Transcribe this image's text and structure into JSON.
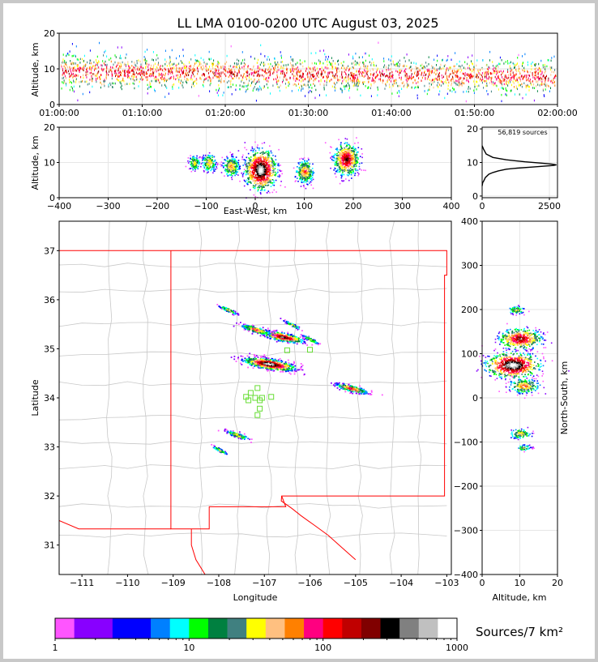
{
  "title": "LL LMA 0100-0200 UTC August 03, 2025",
  "colorbar_label": "Sources/7 km²",
  "chart_data": [
    {
      "id": "time_height",
      "type": "scatter",
      "ylabel": "Altitude, km",
      "ylim": [
        0,
        20
      ],
      "yticks": [
        "0",
        "10",
        "20"
      ],
      "xticks": [
        "01:00:00",
        "01:10:00",
        "01:20:00",
        "01:30:00",
        "01:40:00",
        "01:50:00",
        "02:00:00"
      ],
      "grid": true
    },
    {
      "id": "ew_height",
      "type": "heatmap",
      "xlabel": "East-West, km",
      "ylabel": "Altitude, km",
      "xlim": [
        -400,
        400
      ],
      "ylim": [
        0,
        20
      ],
      "xticks": [
        "−400",
        "−300",
        "−200",
        "−100",
        "0",
        "100",
        "200",
        "300",
        "400"
      ],
      "yticks": [
        "0",
        "10",
        "20"
      ],
      "clusters": [
        {
          "x": 10,
          "z": 8,
          "weight": 3
        },
        {
          "x": 100,
          "z": 7.5,
          "weight": 1
        },
        {
          "x": 185,
          "z": 11,
          "weight": 2
        },
        {
          "x": -50,
          "z": 9,
          "weight": 0.8
        },
        {
          "x": -95,
          "z": 10,
          "weight": 0.6
        },
        {
          "x": -125,
          "z": 10,
          "weight": 0.4
        }
      ]
    },
    {
      "id": "height_histogram",
      "type": "line",
      "annotation": "56,819 sources",
      "xlim": [
        0,
        2800
      ],
      "ylim": [
        -0.5,
        20.5
      ],
      "xticks": [
        "0",
        "2500"
      ],
      "yticks": [
        "0",
        "10",
        "20"
      ],
      "x": [
        0,
        20,
        60,
        120,
        250,
        400,
        600,
        900,
        1300,
        1800,
        2300,
        2650,
        2760,
        2600,
        2200,
        1600,
        900,
        400,
        150,
        50,
        0
      ],
      "y": [
        3,
        4,
        4.5,
        5.5,
        6.5,
        7,
        7.5,
        8,
        8.3,
        8.6,
        8.9,
        9.1,
        9.3,
        9.5,
        9.8,
        10.2,
        10.8,
        11.5,
        12.5,
        14,
        15
      ]
    },
    {
      "id": "plan_view",
      "type": "heatmap",
      "xlabel": "Longitude",
      "ylabel": "Latitude",
      "xlim": [
        -111.5,
        -102.9
      ],
      "ylim": [
        30.4,
        37.6
      ],
      "xticks": [
        "−111",
        "−110",
        "−109",
        "−108",
        "−107",
        "−106",
        "−105",
        "−104",
        "−103"
      ],
      "yticks": [
        "31",
        "32",
        "33",
        "34",
        "35",
        "36",
        "37"
      ],
      "clusters": [
        {
          "lon": -106.9,
          "lat": 34.7,
          "weight": 3
        },
        {
          "lon": -106.6,
          "lat": 35.25,
          "weight": 2
        },
        {
          "lon": -107.2,
          "lat": 35.4,
          "weight": 1
        },
        {
          "lon": -105.1,
          "lat": 34.2,
          "weight": 1.2
        },
        {
          "lon": -107.6,
          "lat": 33.25,
          "weight": 0.6
        },
        {
          "lon": -108.0,
          "lat": 32.95,
          "weight": 0.3
        },
        {
          "lon": -107.8,
          "lat": 35.8,
          "weight": 0.4
        },
        {
          "lon": -106.4,
          "lat": 35.5,
          "weight": 0.3
        },
        {
          "lon": -106.0,
          "lat": 35.2,
          "weight": 0.3
        }
      ],
      "stations": [
        {
          "lon": -107.15,
          "lat": 34.2
        },
        {
          "lon": -107.3,
          "lat": 34.1
        },
        {
          "lon": -107.4,
          "lat": 34.02
        },
        {
          "lon": -107.2,
          "lat": 34.0
        },
        {
          "lon": -107.05,
          "lat": 34.0
        },
        {
          "lon": -106.85,
          "lat": 34.02
        },
        {
          "lon": -107.1,
          "lat": 33.95
        },
        {
          "lon": -107.1,
          "lat": 33.78
        },
        {
          "lon": -107.15,
          "lat": 33.65
        },
        {
          "lon": -107.35,
          "lat": 33.95
        },
        {
          "lon": -106.5,
          "lat": 34.97
        },
        {
          "lon": -106.0,
          "lat": 34.98
        }
      ]
    },
    {
      "id": "ns_height",
      "type": "heatmap",
      "xlabel": "Altitude, km",
      "ylabel": "North-South, km",
      "xlim": [
        0,
        20
      ],
      "ylim": [
        -400,
        400
      ],
      "xticks": [
        "0",
        "10",
        "20"
      ],
      "yticks": [
        "400",
        "300",
        "200",
        "100",
        "0",
        "−100",
        "−200",
        "−300",
        "−400"
      ],
      "clusters": [
        {
          "z": 8,
          "y": 75,
          "weight": 3
        },
        {
          "z": 10,
          "y": 135,
          "weight": 2
        },
        {
          "z": 11,
          "y": 28,
          "weight": 1
        },
        {
          "z": 10,
          "y": -80,
          "weight": 0.5
        },
        {
          "z": 9,
          "y": 200,
          "weight": 0.3
        },
        {
          "z": 11,
          "y": -112,
          "weight": 0.2
        }
      ]
    },
    {
      "id": "colorbar",
      "type": "heatmap",
      "colors": [
        "#ff55ff",
        "#8800ff",
        "#8800ff",
        "#0000ff",
        "#0000ff",
        "#0080ff",
        "#00ffff",
        "#00ff00",
        "#008040",
        "#408080",
        "#ffff00",
        "#ffc080",
        "#ff8000",
        "#ff0080",
        "#ff0000",
        "#c00000",
        "#800000",
        "#000000",
        "#808080",
        "#c0c0c0",
        "#ffffff"
      ],
      "ticks": [
        "1",
        "10",
        "100",
        "1000"
      ]
    }
  ]
}
